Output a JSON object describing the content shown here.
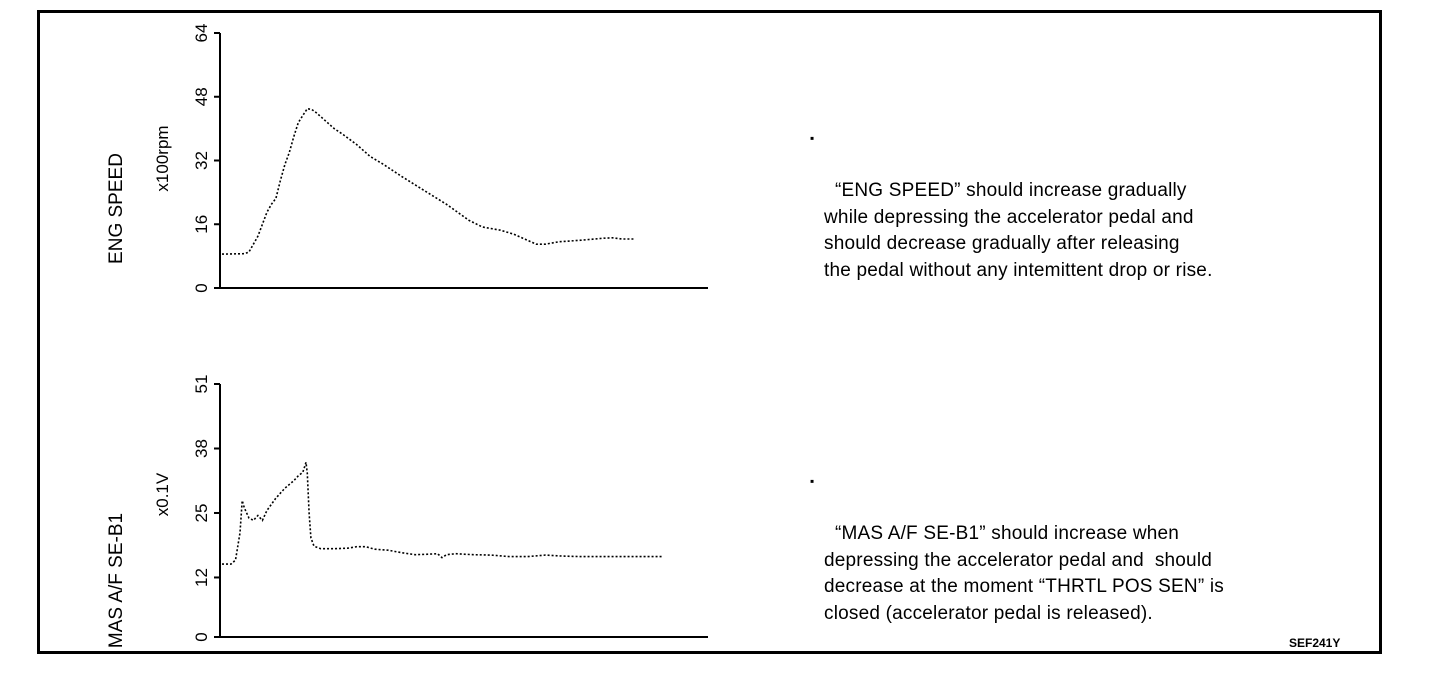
{
  "chart_data": [
    {
      "type": "line",
      "ylabel": "ENG SPEED",
      "yunit": "x100rpm",
      "yticks": [
        0,
        16,
        32,
        48,
        64
      ],
      "ylim": [
        0,
        64
      ],
      "xlim": [
        0,
        100
      ],
      "line_style": "dotted",
      "points": [
        [
          0,
          8.5
        ],
        [
          5,
          8.6
        ],
        [
          6,
          9
        ],
        [
          7,
          11
        ],
        [
          8,
          13
        ],
        [
          9,
          16
        ],
        [
          10,
          19
        ],
        [
          11,
          21
        ],
        [
          12,
          22.5
        ],
        [
          13,
          27
        ],
        [
          14,
          31
        ],
        [
          15,
          34
        ],
        [
          16,
          38
        ],
        [
          17,
          41.5
        ],
        [
          18,
          43.3
        ],
        [
          19,
          45
        ],
        [
          20,
          44.8
        ],
        [
          21,
          44
        ],
        [
          23,
          42
        ],
        [
          25,
          40
        ],
        [
          27,
          38.5
        ],
        [
          30,
          36
        ],
        [
          33,
          33
        ],
        [
          36,
          31
        ],
        [
          40,
          28
        ],
        [
          45,
          24.5
        ],
        [
          50,
          21
        ],
        [
          55,
          17
        ],
        [
          58,
          15.3
        ],
        [
          62,
          14.5
        ],
        [
          65,
          13.5
        ],
        [
          68,
          12
        ],
        [
          70,
          11
        ],
        [
          72,
          11
        ],
        [
          75,
          11.6
        ],
        [
          80,
          12
        ],
        [
          85,
          12.5
        ],
        [
          87,
          12.6
        ],
        [
          89,
          12.3
        ],
        [
          92,
          12.3
        ]
      ]
    },
    {
      "type": "line",
      "ylabel": "MAS A/F SE-B1",
      "yunit": "x0.1V",
      "yticks": [
        0,
        12,
        25,
        38,
        51
      ],
      "ylim": [
        0,
        51
      ],
      "xlim": [
        0,
        100
      ],
      "line_style": "dotted",
      "points": [
        [
          0,
          14.7
        ],
        [
          2,
          14.7
        ],
        [
          3,
          15.5
        ],
        [
          4,
          21
        ],
        [
          4.5,
          27.5
        ],
        [
          5,
          26
        ],
        [
          6,
          24
        ],
        [
          7,
          23.5
        ],
        [
          8,
          24.5
        ],
        [
          9,
          23.5
        ],
        [
          10,
          25.5
        ],
        [
          12,
          28
        ],
        [
          14,
          30
        ],
        [
          16,
          31.5
        ],
        [
          17,
          32.5
        ],
        [
          18,
          33.2
        ],
        [
          18.7,
          35.2
        ],
        [
          19,
          33
        ],
        [
          19.4,
          25
        ],
        [
          19.8,
          20
        ],
        [
          20.5,
          18.3
        ],
        [
          22,
          17.8
        ],
        [
          25,
          17.8
        ],
        [
          28,
          17.9
        ],
        [
          30,
          18.2
        ],
        [
          32,
          18.2
        ],
        [
          34,
          17.7
        ],
        [
          37,
          17.5
        ],
        [
          40,
          17
        ],
        [
          43,
          16.6
        ],
        [
          46,
          16.7
        ],
        [
          48,
          16.8
        ],
        [
          49,
          16
        ],
        [
          50,
          16.6
        ],
        [
          52,
          16.8
        ],
        [
          56,
          16.6
        ],
        [
          60,
          16.5
        ],
        [
          64,
          16.2
        ],
        [
          68,
          16.2
        ],
        [
          72,
          16.5
        ],
        [
          76,
          16.3
        ],
        [
          80,
          16.2
        ],
        [
          85,
          16.2
        ],
        [
          90,
          16.2
        ],
        [
          98,
          16.2
        ]
      ]
    }
  ],
  "notes": {
    "eng_speed": "“ENG SPEED” should increase gradually\nwhile depressing the accelerator pedal and\nshould decrease gradually after releasing\nthe pedal without any intemittent drop or rise.",
    "maf": "“MAS A/F SE-B1” should increase when\ndepressing the accelerator pedal and  should\ndecrease at the moment “THRTL POS SEN” is\nclosed (accelerator pedal is released).",
    "bullet": "▪"
  },
  "figure_id": "SEF241Y"
}
